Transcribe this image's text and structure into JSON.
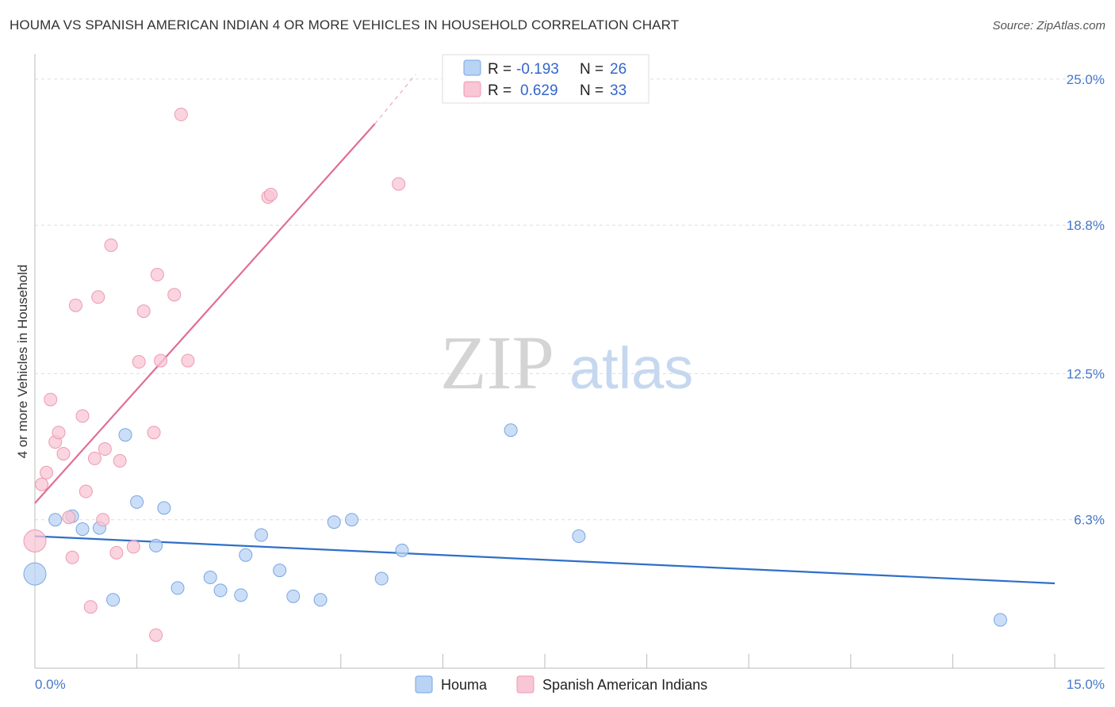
{
  "title": "HOUMA VS SPANISH AMERICAN INDIAN 4 OR MORE VEHICLES IN HOUSEHOLD CORRELATION CHART",
  "source": "Source: ZipAtlas.com",
  "watermark": {
    "zip": "ZIP",
    "atlas": "atlas"
  },
  "colors": {
    "houma_fill": "#b9d3f5",
    "houma_stroke": "#7aa6e0",
    "houma_line": "#2f6fc8",
    "sai_fill": "#f8c6d4",
    "sai_stroke": "#ec9ab2",
    "sai_line": "#e06e96",
    "tick_text": "#4477cc",
    "grid": "#dddddd"
  },
  "legend": {
    "rows": [
      {
        "r_label": "R = ",
        "r_value": "-0.193",
        "n_label": "N = ",
        "n_value": "26",
        "series": "houma"
      },
      {
        "r_label": "R = ",
        "r_value": "0.629",
        "n_label": "N = ",
        "n_value": "33",
        "series": "sai"
      }
    ]
  },
  "chart_data": {
    "type": "scatter",
    "title": "HOUMA VS SPANISH AMERICAN INDIAN 4 OR MORE VEHICLES IN HOUSEHOLD CORRELATION CHART",
    "xlabel": "",
    "ylabel": "4 or more Vehicles in Household",
    "xlim": [
      0,
      15
    ],
    "ylim": [
      0,
      25.7
    ],
    "x_tick_labels": [
      "0.0%",
      "15.0%"
    ],
    "y_ticks": [
      6.3,
      12.5,
      18.8,
      25.0
    ],
    "y_tick_labels": [
      "6.3%",
      "12.5%",
      "18.8%",
      "25.0%"
    ],
    "grid": true,
    "legend_position": "bottom",
    "series": [
      {
        "name": "Houma",
        "key": "houma",
        "r": -0.193,
        "n": 26,
        "trend": {
          "x": [
            0,
            15
          ],
          "y": [
            5.6,
            3.6
          ]
        },
        "points": [
          {
            "x": 0.0,
            "y": 4.0,
            "big": true
          },
          {
            "x": 0.3,
            "y": 6.3
          },
          {
            "x": 0.55,
            "y": 6.45
          },
          {
            "x": 0.7,
            "y": 5.9
          },
          {
            "x": 0.95,
            "y": 5.95
          },
          {
            "x": 1.15,
            "y": 2.9
          },
          {
            "x": 1.33,
            "y": 9.9
          },
          {
            "x": 1.5,
            "y": 7.05
          },
          {
            "x": 1.78,
            "y": 5.2
          },
          {
            "x": 1.9,
            "y": 6.8
          },
          {
            "x": 2.1,
            "y": 3.4
          },
          {
            "x": 2.58,
            "y": 3.85
          },
          {
            "x": 2.73,
            "y": 3.3
          },
          {
            "x": 3.03,
            "y": 3.1
          },
          {
            "x": 3.1,
            "y": 4.8
          },
          {
            "x": 3.33,
            "y": 5.65
          },
          {
            "x": 3.6,
            "y": 4.15
          },
          {
            "x": 3.8,
            "y": 3.05
          },
          {
            "x": 4.2,
            "y": 2.9
          },
          {
            "x": 4.4,
            "y": 6.2
          },
          {
            "x": 4.66,
            "y": 6.3
          },
          {
            "x": 5.1,
            "y": 3.8
          },
          {
            "x": 5.4,
            "y": 5.0
          },
          {
            "x": 7.0,
            "y": 10.1
          },
          {
            "x": 8.0,
            "y": 5.6
          },
          {
            "x": 14.2,
            "y": 2.05
          }
        ]
      },
      {
        "name": "Spanish American Indians",
        "key": "sai",
        "r": 0.629,
        "n": 33,
        "trend": {
          "x": [
            0,
            5.0
          ],
          "y": [
            7.0,
            23.1
          ]
        },
        "trend_dashed": {
          "x": [
            5.0,
            5.6
          ],
          "y": [
            23.1,
            25.2
          ]
        },
        "points": [
          {
            "x": 0.0,
            "y": 5.4,
            "big": true
          },
          {
            "x": 0.1,
            "y": 7.8
          },
          {
            "x": 0.17,
            "y": 8.3
          },
          {
            "x": 0.23,
            "y": 11.4
          },
          {
            "x": 0.3,
            "y": 9.6
          },
          {
            "x": 0.35,
            "y": 10.0
          },
          {
            "x": 0.42,
            "y": 9.1
          },
          {
            "x": 0.5,
            "y": 6.4
          },
          {
            "x": 0.55,
            "y": 4.7
          },
          {
            "x": 0.6,
            "y": 15.4
          },
          {
            "x": 0.7,
            "y": 10.7
          },
          {
            "x": 0.75,
            "y": 7.5
          },
          {
            "x": 0.82,
            "y": 2.6
          },
          {
            "x": 0.88,
            "y": 8.9
          },
          {
            "x": 0.93,
            "y": 15.75
          },
          {
            "x": 1.0,
            "y": 6.3
          },
          {
            "x": 1.03,
            "y": 9.3
          },
          {
            "x": 1.12,
            "y": 17.95
          },
          {
            "x": 1.2,
            "y": 4.9
          },
          {
            "x": 1.25,
            "y": 8.8
          },
          {
            "x": 1.45,
            "y": 5.15
          },
          {
            "x": 1.53,
            "y": 13.0
          },
          {
            "x": 1.6,
            "y": 15.15
          },
          {
            "x": 1.75,
            "y": 10.0
          },
          {
            "x": 1.78,
            "y": 1.4
          },
          {
            "x": 1.8,
            "y": 16.7
          },
          {
            "x": 1.85,
            "y": 13.05
          },
          {
            "x": 2.05,
            "y": 15.85
          },
          {
            "x": 2.15,
            "y": 23.5
          },
          {
            "x": 2.25,
            "y": 13.05
          },
          {
            "x": 3.43,
            "y": 20.0
          },
          {
            "x": 3.47,
            "y": 20.1
          },
          {
            "x": 5.35,
            "y": 20.55
          }
        ]
      }
    ]
  }
}
